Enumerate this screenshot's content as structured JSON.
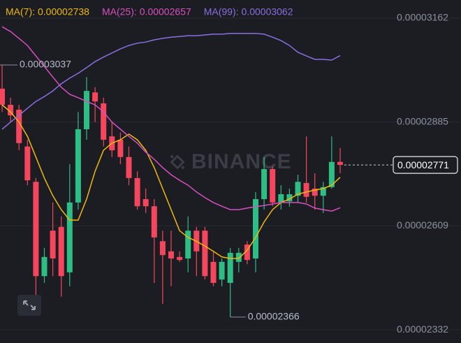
{
  "chart_data": {
    "type": "candlestick",
    "watermark": "BINANCE",
    "up_color": "#2ebd85",
    "down_color": "#f6465d",
    "grid": true,
    "ylim": [
      2.297e-05,
      3.21e-05
    ],
    "yticks": [
      3.162e-05,
      2.885e-05,
      2.609e-05,
      2.332e-05
    ],
    "candles": {
      "open": [
        2.974e-05,
        2.931e-05,
        2.918e-05,
        2.82e-05,
        2.726e-05,
        2.475e-05,
        2.596e-05,
        2.606e-05,
        2.485e-05,
        2.671e-05,
        2.866e-05,
        2.964e-05,
        2.935e-05,
        2.847e-05,
        2.838e-05,
        2.792e-05,
        2.736e-05,
        2.68e-05,
        2.661e-05,
        2.568e-05,
        2.541e-05,
        2.526e-05,
        2.522e-05,
        2.596e-05,
        2.596e-05,
        2.513e-05,
        2.466e-05,
        2.457e-05,
        2.513e-05,
        2.559e-05,
        2.522e-05,
        2.68e-05,
        2.76e-05,
        2.671e-05,
        2.674e-05,
        2.689e-05,
        2.723e-05,
        2.708e-05,
        2.689e-05,
        2.712e-05,
        2.779e-05
      ],
      "high": [
        3.037e-05,
        2.95e-05,
        2.931e-05,
        2.838e-05,
        2.736e-05,
        2.55e-05,
        2.671e-05,
        2.634e-05,
        2.773e-05,
        2.912e-05,
        3.005e-05,
        2.978e-05,
        2.95e-05,
        2.885e-05,
        2.857e-05,
        2.82e-05,
        2.754e-05,
        2.708e-05,
        2.68e-05,
        2.596e-05,
        2.596e-05,
        2.541e-05,
        2.634e-05,
        2.606e-05,
        2.606e-05,
        2.541e-05,
        2.522e-05,
        2.55e-05,
        2.55e-05,
        2.568e-05,
        2.699e-05,
        2.792e-05,
        2.767e-05,
        2.717e-05,
        2.708e-05,
        2.745e-05,
        2.847e-05,
        2.749e-05,
        2.726e-05,
        2.847e-05,
        2.816e-05
      ],
      "low": [
        2.912e-05,
        2.885e-05,
        2.81e-05,
        2.717e-05,
        2.42e-05,
        2.457e-05,
        2.475e-05,
        2.42e-05,
        2.448e-05,
        2.652e-05,
        2.838e-05,
        2.885e-05,
        2.82e-05,
        2.792e-05,
        2.773e-05,
        2.717e-05,
        2.652e-05,
        2.643e-05,
        2.457e-05,
        2.401e-05,
        2.448e-05,
        2.513e-05,
        2.485e-05,
        2.475e-05,
        2.466e-05,
        2.448e-05,
        2.448e-05,
        2.366e-05,
        2.485e-05,
        2.507e-05,
        2.485e-05,
        2.652e-05,
        2.661e-05,
        2.652e-05,
        2.66e-05,
        2.671e-05,
        2.671e-05,
        2.652e-05,
        2.643e-05,
        2.708e-05,
        2.749e-05
      ],
      "close": [
        2.931e-05,
        2.903e-05,
        2.829e-05,
        2.73e-05,
        2.475e-05,
        2.526e-05,
        2.522e-05,
        2.475e-05,
        2.671e-05,
        2.866e-05,
        2.968e-05,
        2.94e-05,
        2.838e-05,
        2.81e-05,
        2.792e-05,
        2.736e-05,
        2.661e-05,
        2.661e-05,
        2.578e-05,
        2.531e-05,
        2.522e-05,
        2.518e-05,
        2.596e-05,
        2.541e-05,
        2.475e-05,
        2.457e-05,
        2.513e-05,
        2.537e-05,
        2.537e-05,
        2.518e-05,
        2.68e-05,
        2.76e-05,
        2.671e-05,
        2.693e-05,
        2.693e-05,
        2.726e-05,
        2.686e-05,
        2.689e-05,
        2.712e-05,
        2.779e-05,
        2.771e-05
      ]
    },
    "series": [
      {
        "name": "MA(7):",
        "color": "#f0b90b",
        "values": [
          2.931e-05,
          2.912e-05,
          2.885e-05,
          2.847e-05,
          2.792e-05,
          2.736e-05,
          2.689e-05,
          2.652e-05,
          2.624e-05,
          2.624e-05,
          2.68e-05,
          2.754e-05,
          2.81e-05,
          2.829e-05,
          2.838e-05,
          2.853e-05,
          2.838e-05,
          2.81e-05,
          2.764e-05,
          2.708e-05,
          2.652e-05,
          2.596e-05,
          2.578e-05,
          2.568e-05,
          2.555e-05,
          2.541e-05,
          2.526e-05,
          2.522e-05,
          2.522e-05,
          2.544e-05,
          2.578e-05,
          2.619e-05,
          2.652e-05,
          2.671e-05,
          2.68e-05,
          2.693e-05,
          2.699e-05,
          2.704e-05,
          2.708e-05,
          2.717e-05,
          2.738e-05
        ]
      },
      {
        "name": "MA(25):",
        "color": "#d94fc0",
        "values": [
          3.139e-05,
          3.126e-05,
          3.108e-05,
          3.089e-05,
          3.061e-05,
          3.033e-05,
          3.005e-05,
          2.978e-05,
          2.959e-05,
          2.95e-05,
          2.94e-05,
          2.931e-05,
          2.912e-05,
          2.885e-05,
          2.866e-05,
          2.847e-05,
          2.829e-05,
          2.805e-05,
          2.786e-05,
          2.764e-05,
          2.745e-05,
          2.73e-05,
          2.717e-05,
          2.699e-05,
          2.684e-05,
          2.671e-05,
          2.661e-05,
          2.652e-05,
          2.652e-05,
          2.656e-05,
          2.66e-05,
          2.663e-05,
          2.667e-05,
          2.671e-05,
          2.671e-05,
          2.671e-05,
          2.667e-05,
          2.656e-05,
          2.652e-05,
          2.648e-05,
          2.657e-05
        ]
      },
      {
        "name": "MA(99):",
        "color": "#8c6ee0",
        "values": [
          2.866e-05,
          2.885e-05,
          2.903e-05,
          2.922e-05,
          2.94e-05,
          2.953e-05,
          2.968e-05,
          2.987e-05,
          3.002e-05,
          3.015e-05,
          3.03e-05,
          3.046e-05,
          3.058e-05,
          3.069e-05,
          3.08e-05,
          3.089e-05,
          3.095e-05,
          3.098e-05,
          3.104e-05,
          3.108e-05,
          3.111e-05,
          3.113e-05,
          3.115e-05,
          3.115e-05,
          3.117e-05,
          3.119e-05,
          3.119e-05,
          3.121e-05,
          3.121e-05,
          3.121e-05,
          3.121e-05,
          3.119e-05,
          3.111e-05,
          3.102e-05,
          3.089e-05,
          3.071e-05,
          3.061e-05,
          3.052e-05,
          3.052e-05,
          3.05e-05,
          3.062e-05
        ]
      }
    ]
  }
}
